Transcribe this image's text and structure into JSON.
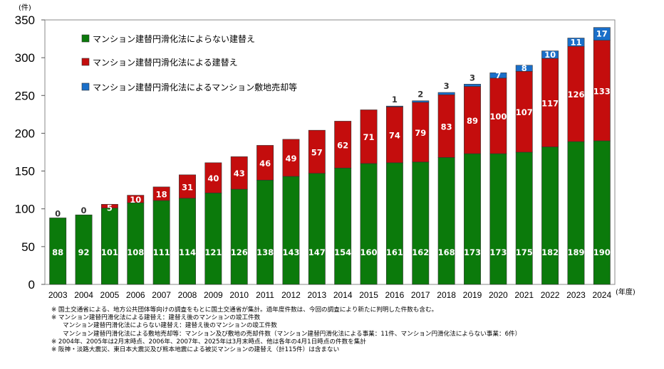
{
  "chart_data": {
    "type": "bar",
    "stacked": true,
    "categories": [
      "2003",
      "2004",
      "2005",
      "2006",
      "2007",
      "2008",
      "2009",
      "2010",
      "2011",
      "2012",
      "2013",
      "2014",
      "2015",
      "2016",
      "2017",
      "2018",
      "2019",
      "2020",
      "2021",
      "2022",
      "2023",
      "2024"
    ],
    "series": [
      {
        "name": "マンション建替円滑化法によらない建替え",
        "color": "#0b7a0b",
        "values": [
          88,
          92,
          101,
          108,
          111,
          114,
          121,
          126,
          138,
          143,
          147,
          154,
          160,
          161,
          162,
          168,
          173,
          173,
          175,
          182,
          189,
          190
        ]
      },
      {
        "name": "マンション建替円滑化法による建替え",
        "color": "#c40d0d",
        "values": [
          0,
          0,
          5,
          10,
          18,
          31,
          40,
          43,
          46,
          49,
          57,
          62,
          71,
          74,
          79,
          83,
          89,
          100,
          107,
          117,
          126,
          133
        ]
      },
      {
        "name": "マンション建替円滑化法によるマンション敷地売却等",
        "color": "#1a6fc9",
        "values": [
          0,
          0,
          0,
          0,
          0,
          0,
          0,
          0,
          0,
          0,
          0,
          0,
          0,
          1,
          2,
          3,
          3,
          7,
          8,
          10,
          11,
          17
        ]
      }
    ],
    "xlabel": "(年度)",
    "ylabel": "(件)",
    "ylim": [
      0,
      350
    ],
    "yticks": [
      0,
      50,
      100,
      150,
      200,
      250,
      300,
      350
    ],
    "grid": false,
    "legend_position": "top-left",
    "notes": [
      "※ 国土交通省による、地方公共団体等向けの調査をもとに国土交通省が集計。過年度件数は、今回の調査により新たに判明した件数も含む。",
      "※ マンション建替円滑化法による建替え：建替え後のマンションの竣工件数",
      "マンション建替円滑化法によらない建替え：建替え後のマンションの竣工件数",
      "マンション建替円滑化法による敷地売却等：マンション及び敷地の売却件数（マンション建替円滑化法による事業：11件、マンション円滑化法によらない事業：6件）",
      "※ 2004年、2005年は2月末時点、2006年、2007年、2025年は3月末時点、他は各年の4月1日時点の件数を集計",
      "※ 阪神・淡路大震災、東日本大震災及び熊本地震による被災マンションの建替え（計115件）は含まない"
    ]
  }
}
